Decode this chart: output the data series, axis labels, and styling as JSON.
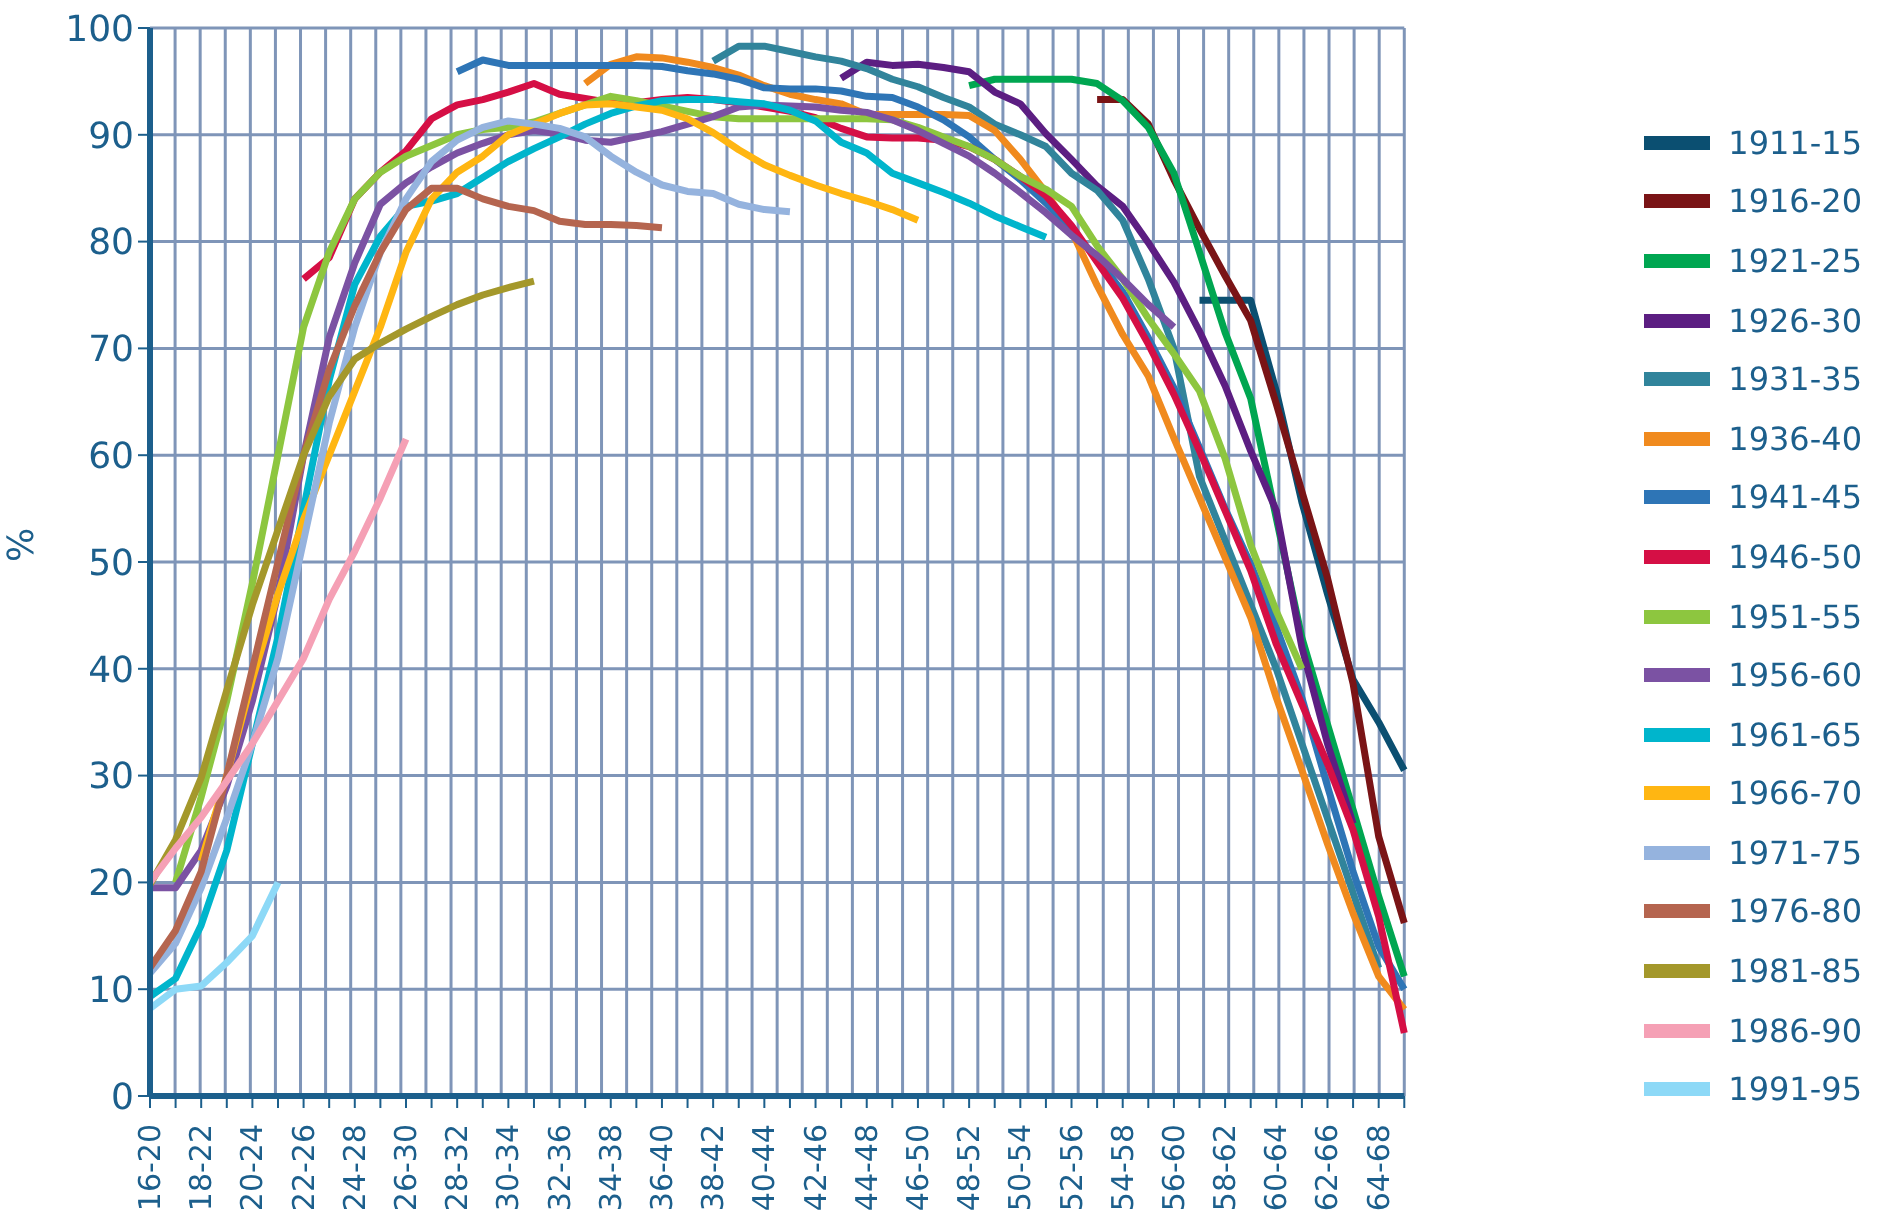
{
  "chart_data": {
    "type": "line",
    "ylabel": "%",
    "categories": [
      "16-20",
      null,
      "18-22",
      null,
      "20-24",
      null,
      "22-26",
      null,
      "24-28",
      null,
      "26-30",
      null,
      "28-32",
      null,
      "30-34",
      null,
      "32-36",
      null,
      "34-38",
      null,
      "36-40",
      null,
      "38-42",
      null,
      "40-44",
      null,
      "42-46",
      null,
      "44-48",
      null,
      "46-50",
      null,
      "48-52",
      null,
      "50-54",
      null,
      "52-56",
      null,
      "54-58",
      null,
      "56-60",
      null,
      "58-62",
      null,
      "60-64",
      null,
      "62-66",
      null,
      "64-68",
      null
    ],
    "ylim": [
      0,
      100
    ],
    "yticks": [
      0,
      10,
      20,
      30,
      40,
      50,
      60,
      70,
      80,
      90,
      100
    ],
    "grid": true,
    "legend": "right",
    "series": [
      {
        "name": "1911-15",
        "color": "#0b4f71",
        "values": [
          null,
          null,
          null,
          null,
          null,
          null,
          null,
          null,
          null,
          null,
          null,
          null,
          null,
          null,
          null,
          null,
          null,
          null,
          null,
          null,
          null,
          null,
          null,
          null,
          null,
          null,
          null,
          null,
          null,
          null,
          null,
          null,
          null,
          null,
          null,
          null,
          null,
          null,
          null,
          null,
          null,
          74.5,
          74.5,
          74.5,
          66,
          55.6,
          47,
          39,
          35,
          30.5
        ]
      },
      {
        "name": "1916-20",
        "color": "#7a1416",
        "values": [
          null,
          null,
          null,
          null,
          null,
          null,
          null,
          null,
          null,
          null,
          null,
          null,
          null,
          null,
          null,
          null,
          null,
          null,
          null,
          null,
          null,
          null,
          null,
          null,
          null,
          null,
          null,
          null,
          null,
          null,
          null,
          null,
          null,
          null,
          null,
          null,
          null,
          93.3,
          93.3,
          91,
          85.8,
          81.2,
          76.8,
          72.6,
          64.8,
          56.6,
          48.5,
          38.6,
          24.3,
          16.2
        ]
      },
      {
        "name": "1921-25",
        "color": "#00a651",
        "values": [
          null,
          null,
          null,
          null,
          null,
          null,
          null,
          null,
          null,
          null,
          null,
          null,
          null,
          null,
          null,
          null,
          null,
          null,
          null,
          null,
          null,
          null,
          null,
          null,
          null,
          null,
          null,
          null,
          null,
          null,
          null,
          null,
          94.6,
          95.2,
          95.2,
          95.2,
          95.2,
          94.8,
          93.2,
          90.7,
          86.4,
          79,
          71.5,
          65.3,
          54.1,
          42.9,
          34.8,
          26.8,
          18.7,
          11.2
        ]
      },
      {
        "name": "1926-30",
        "color": "#5c1e82",
        "values": [
          null,
          null,
          null,
          null,
          null,
          null,
          null,
          null,
          null,
          null,
          null,
          null,
          null,
          null,
          null,
          null,
          null,
          null,
          null,
          null,
          null,
          null,
          null,
          null,
          null,
          null,
          null,
          95.3,
          96.8,
          96.5,
          96.6,
          96.3,
          95.9,
          94,
          92.9,
          90.1,
          87.7,
          85.2,
          83.3,
          79.9,
          76.2,
          71.6,
          66.5,
          60.4,
          54.8,
          42,
          33,
          25.5,
          null,
          null
        ]
      },
      {
        "name": "1931-35",
        "color": "#31849b",
        "values": [
          null,
          null,
          null,
          null,
          null,
          null,
          null,
          null,
          null,
          null,
          null,
          null,
          null,
          null,
          null,
          null,
          null,
          null,
          null,
          null,
          null,
          null,
          96.9,
          98.3,
          98.3,
          97.8,
          97.3,
          96.9,
          96.2,
          95.2,
          94.5,
          93.5,
          92.6,
          91,
          90,
          88.9,
          86.4,
          84.8,
          82,
          76.5,
          70,
          58,
          52,
          46,
          40,
          33,
          26,
          19,
          12,
          null
        ]
      },
      {
        "name": "1936-40",
        "color": "#f08a1e",
        "values": [
          null,
          null,
          null,
          null,
          null,
          null,
          null,
          null,
          null,
          null,
          null,
          null,
          null,
          null,
          null,
          null,
          null,
          94.8,
          96.6,
          97.3,
          97.2,
          96.8,
          96.3,
          95.6,
          94.6,
          93.8,
          93.3,
          92.9,
          91.9,
          91.9,
          91.9,
          91.9,
          91.8,
          90.4,
          87.7,
          84.6,
          81,
          75.9,
          71.3,
          67.4,
          61.6,
          56,
          50.4,
          44.8,
          37.3,
          30.5,
          23.6,
          17.1,
          11.2,
          8.1
        ]
      },
      {
        "name": "1941-45",
        "color": "#2e75b6",
        "values": [
          null,
          null,
          null,
          null,
          null,
          null,
          null,
          null,
          null,
          null,
          null,
          null,
          95.9,
          97,
          96.5,
          96.5,
          96.5,
          96.5,
          96.5,
          96.5,
          96.4,
          96,
          95.7,
          95.2,
          94.4,
          94.3,
          94.3,
          94.1,
          93.6,
          93.5,
          92.6,
          91.4,
          89.8,
          87.7,
          85.8,
          83.6,
          81.1,
          78.4,
          75.3,
          71,
          66.3,
          60.7,
          55,
          49.8,
          43.9,
          37.3,
          29,
          21,
          14,
          10
        ]
      },
      {
        "name": "1946-50",
        "color": "#d50f45",
        "values": [
          null,
          null,
          null,
          null,
          null,
          null,
          76.5,
          78.5,
          84,
          86.5,
          88.5,
          91.5,
          92.8,
          93.3,
          94,
          94.8,
          93.8,
          93.4,
          93,
          93,
          93.3,
          93.5,
          93.3,
          93,
          92.6,
          92.2,
          91.6,
          90.6,
          89.8,
          89.7,
          89.7,
          89.5,
          88.9,
          87.7,
          86.1,
          84.3,
          81.5,
          78.1,
          74.7,
          70.4,
          65.7,
          60.4,
          54.8,
          49.2,
          42.3,
          36.7,
          31.1,
          24.9,
          16.8,
          5.9
        ]
      },
      {
        "name": "1951-55",
        "color": "#8dc63f",
        "values": [
          null,
          20,
          28,
          37,
          48,
          60,
          72,
          79,
          84,
          86.5,
          88,
          89,
          90,
          90.5,
          90.7,
          91.2,
          92,
          92.8,
          93.6,
          93.2,
          92.7,
          92.2,
          91.7,
          91.5,
          91.5,
          91.5,
          91.5,
          91.5,
          91.5,
          91.4,
          90.7,
          89.8,
          88.9,
          87.7,
          86.1,
          84.9,
          83.3,
          79.6,
          76.5,
          72.8,
          69.5,
          66,
          59.7,
          51.6,
          45.4,
          40,
          null,
          null,
          null,
          null
        ]
      },
      {
        "name": "1956-60",
        "color": "#7b52a3",
        "values": [
          19.5,
          19.5,
          23,
          29,
          37,
          47,
          60,
          71,
          78,
          83.5,
          85.5,
          87,
          88.3,
          89.2,
          90,
          90.4,
          90.1,
          89.5,
          89.3,
          89.8,
          90.3,
          91,
          91.7,
          92.6,
          92.8,
          92.7,
          92.6,
          92.3,
          92.1,
          91.4,
          90.4,
          89.2,
          88,
          86.4,
          84.6,
          82.7,
          80.6,
          78.7,
          76.5,
          74.1,
          72,
          null,
          null,
          null,
          null,
          null,
          null,
          null,
          null,
          null
        ]
      },
      {
        "name": "1961-65",
        "color": "#00b5cc",
        "values": [
          9.3,
          11,
          16,
          23,
          33,
          43,
          55,
          67,
          76,
          80.5,
          83.3,
          83.8,
          84.5,
          86,
          87.5,
          88.7,
          89.8,
          91,
          92,
          92.7,
          93.2,
          93.3,
          93.3,
          93.1,
          92.9,
          92.3,
          91.3,
          89.3,
          88.3,
          86.4,
          85.5,
          84.6,
          83.6,
          82.4,
          81.4,
          80.4,
          null,
          null,
          null,
          null,
          null,
          null,
          null,
          null,
          null,
          null,
          null,
          null,
          null,
          null
        ]
      },
      {
        "name": "1966-70",
        "color": "#ffb612",
        "values": [
          null,
          null,
          22,
          30,
          39,
          47,
          54,
          60,
          66,
          72,
          79,
          84,
          86.5,
          88,
          90,
          91,
          92,
          92.8,
          92.9,
          92.6,
          92.3,
          91.5,
          90.2,
          88.6,
          87.2,
          86.2,
          85.3,
          84.5,
          83.8,
          83,
          82,
          null,
          null,
          null,
          null,
          null,
          null,
          null,
          null,
          null,
          null,
          null,
          null,
          null,
          null,
          null,
          null,
          null,
          null,
          null
        ]
      },
      {
        "name": "1971-75",
        "color": "#95b3de",
        "values": [
          11.5,
          14.3,
          19.5,
          26,
          33,
          41,
          52,
          63,
          72,
          79,
          84,
          87.5,
          89.5,
          90.7,
          91.3,
          91,
          90.6,
          89.8,
          88,
          86.5,
          85.3,
          84.7,
          84.5,
          83.5,
          83,
          82.8,
          null,
          null,
          null,
          null,
          null,
          null,
          null,
          null,
          null,
          null,
          null,
          null,
          null,
          null,
          null,
          null,
          null,
          null,
          null,
          null,
          null,
          null,
          null,
          null
        ]
      },
      {
        "name": "1976-80",
        "color": "#b5654f",
        "values": [
          12,
          15.5,
          21,
          30,
          40,
          50,
          60,
          68,
          74,
          79,
          83,
          85,
          85,
          84,
          83.3,
          82.9,
          81.9,
          81.6,
          81.6,
          81.5,
          81.3,
          null,
          null,
          null,
          null,
          null,
          null,
          null,
          null,
          null,
          null,
          null,
          null,
          null,
          null,
          null,
          null,
          null,
          null,
          null,
          null,
          null,
          null,
          null,
          null,
          null,
          null,
          null,
          null,
          null
        ]
      },
      {
        "name": "1981-85",
        "color": "#a4982b",
        "values": [
          19.8,
          24,
          29.8,
          38,
          46,
          53,
          60,
          65.5,
          69,
          70.5,
          71.8,
          73,
          74.1,
          75,
          75.7,
          76.3,
          null,
          null,
          null,
          null,
          null,
          null,
          null,
          null,
          null,
          null,
          null,
          null,
          null,
          null,
          null,
          null,
          null,
          null,
          null,
          null,
          null,
          null,
          null,
          null,
          null,
          null,
          null,
          null,
          null,
          null,
          null,
          null,
          null,
          null
        ]
      },
      {
        "name": "1986-90",
        "color": "#f5a0b5",
        "values": [
          20,
          23.2,
          26.1,
          29.5,
          33,
          37,
          41,
          46.5,
          51,
          56,
          61.5,
          null,
          null,
          null,
          null,
          null,
          null,
          null,
          null,
          null,
          null,
          null,
          null,
          null,
          null,
          null,
          null,
          null,
          null,
          null,
          null,
          null,
          null,
          null,
          null,
          null,
          null,
          null,
          null,
          null,
          null,
          null,
          null,
          null,
          null,
          null,
          null,
          null,
          null,
          null
        ]
      },
      {
        "name": "1991-95",
        "color": "#8dd9f7",
        "values": [
          8.2,
          10,
          10.3,
          12.5,
          15,
          20,
          null,
          null,
          null,
          null,
          null,
          null,
          null,
          null,
          null,
          null,
          null,
          null,
          null,
          null,
          null,
          null,
          null,
          null,
          null,
          null,
          null,
          null,
          null,
          null,
          null,
          null,
          null,
          null,
          null,
          null,
          null,
          null,
          null,
          null,
          null,
          null,
          null,
          null,
          null,
          null,
          null,
          null,
          null,
          null
        ]
      }
    ]
  }
}
